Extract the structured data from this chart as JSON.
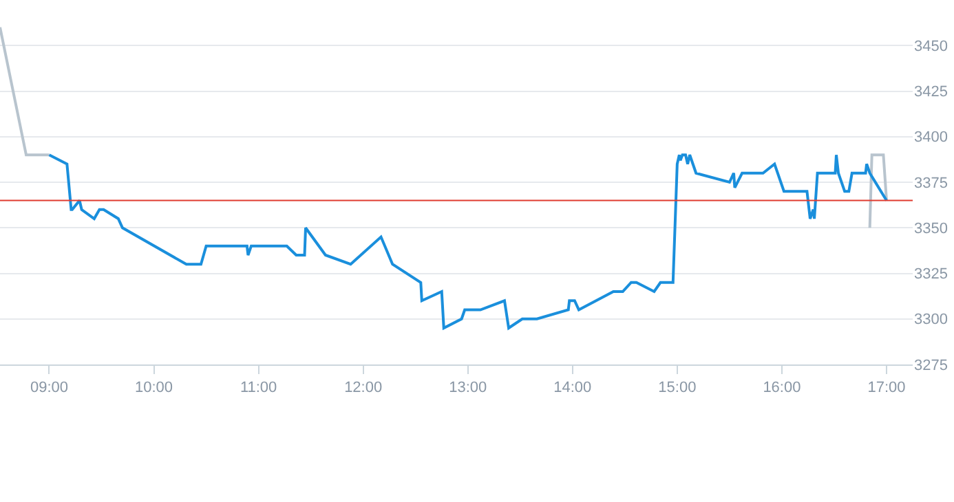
{
  "chart_data": {
    "type": "line",
    "xlim": [
      8.53,
      17.25
    ],
    "ylim": [
      3275,
      3475
    ],
    "xticks": [
      {
        "value": 9,
        "label": "09:00"
      },
      {
        "value": 10,
        "label": "10:00"
      },
      {
        "value": 11,
        "label": "11:00"
      },
      {
        "value": 12,
        "label": "12:00"
      },
      {
        "value": 13,
        "label": "13:00"
      },
      {
        "value": 14,
        "label": "14:00"
      },
      {
        "value": 15,
        "label": "15:00"
      },
      {
        "value": 16,
        "label": "16:00"
      },
      {
        "value": 17,
        "label": "17:00"
      }
    ],
    "yticks": [
      3275,
      3300,
      3325,
      3350,
      3375,
      3400,
      3425,
      3450
    ],
    "grid": "y",
    "marker": "none",
    "line_style": "solid",
    "ref_lines": [
      {
        "axis": "y",
        "value": 3365,
        "color": "#e03c31"
      }
    ],
    "series": [
      {
        "color": "#b8c4ce",
        "x": [
          8.53,
          8.78,
          9.0
        ],
        "values": [
          3460,
          3390,
          3390
        ]
      },
      {
        "color": "#b8c4ce",
        "x": [
          16.84,
          16.86,
          16.97,
          17.0
        ],
        "values": [
          3350,
          3390,
          3390,
          3365
        ]
      },
      {
        "color": "#1a8fdc",
        "x": [
          9.0,
          9.17,
          9.21,
          9.22,
          9.29,
          9.31,
          9.43,
          9.48,
          9.52,
          9.66,
          9.7,
          10.31,
          10.45,
          10.5,
          10.89,
          10.9,
          10.93,
          11.27,
          11.36,
          11.44,
          11.45,
          11.64,
          11.88,
          12.17,
          12.28,
          12.55,
          12.56,
          12.75,
          12.77,
          12.94,
          12.97,
          13.12,
          13.35,
          13.39,
          13.52,
          13.66,
          13.96,
          13.97,
          14.02,
          14.06,
          14.39,
          14.48,
          14.56,
          14.61,
          14.78,
          14.84,
          14.96,
          15.0,
          15.02,
          15.03,
          15.05,
          15.08,
          15.1,
          15.12,
          15.18,
          15.5,
          15.54,
          15.55,
          15.62,
          15.82,
          15.93,
          16.02,
          16.24,
          16.26,
          16.27,
          16.3,
          16.31,
          16.34,
          16.51,
          16.52,
          16.54,
          16.6,
          16.64,
          16.67,
          16.8,
          16.81,
          16.84,
          17.0
        ],
        "values": [
          3390,
          3385,
          3360,
          3360,
          3365,
          3360,
          3355,
          3360,
          3360,
          3355,
          3350,
          3330,
          3330,
          3340,
          3340,
          3335,
          3340,
          3340,
          3335,
          3335,
          3350,
          3335,
          3330,
          3345,
          3330,
          3320,
          3310,
          3315,
          3295,
          3300,
          3305,
          3305,
          3310,
          3295,
          3300,
          3300,
          3305,
          3310,
          3310,
          3305,
          3315,
          3315,
          3320,
          3320,
          3315,
          3320,
          3320,
          3385,
          3390,
          3387,
          3390,
          3390,
          3385,
          3390,
          3380,
          3375,
          3380,
          3372,
          3380,
          3380,
          3385,
          3370,
          3370,
          3360,
          3355,
          3360,
          3355,
          3380,
          3380,
          3390,
          3380,
          3370,
          3370,
          3380,
          3380,
          3385,
          3380,
          3365
        ]
      }
    ]
  }
}
